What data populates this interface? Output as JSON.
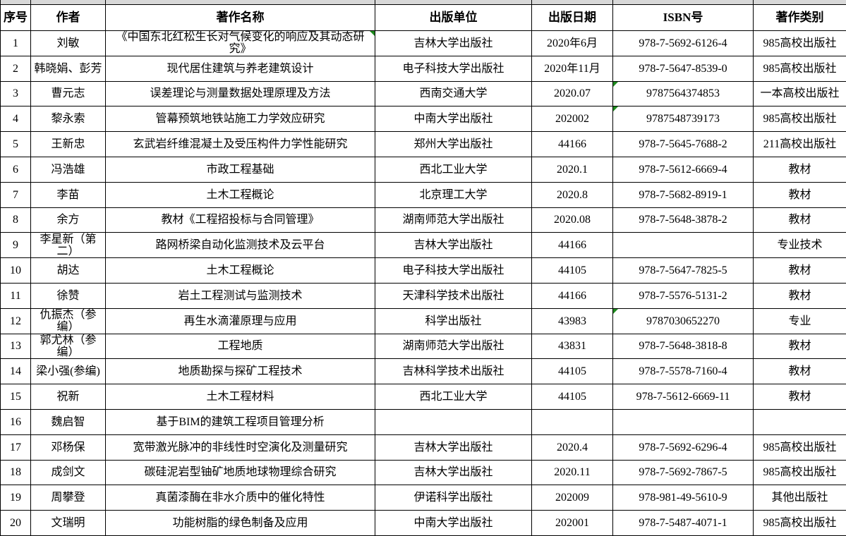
{
  "table": {
    "indicator_color": "#1e8a1e",
    "grid_color": "#000000",
    "strip_color": "#d8d8d8",
    "columns": [
      "序号",
      "作者",
      "著作名称",
      "出版单位",
      "出版日期",
      "ISBN号",
      "著作类别"
    ],
    "rows": [
      {
        "no": "1",
        "author": "刘敏",
        "title": "《中国东北红松生长对气候变化的响应及其动态研究》",
        "publisher": "吉林大学出版社",
        "date": "2020年6月",
        "isbn": "978-7-5692-6126-4",
        "category": "985高校出版社",
        "title_flag": true
      },
      {
        "no": "2",
        "author": "韩晓娟、彭芳",
        "title": "现代居住建筑与养老建筑设计",
        "publisher": "电子科技大学出版社",
        "date": "2020年11月",
        "isbn": "978-7-5647-8539-0",
        "category": "985高校出版社"
      },
      {
        "no": "3",
        "author": "曹元志",
        "title": "误差理论与测量数据处理原理及方法",
        "publisher": "西南交通大学",
        "date": "2020.07",
        "isbn": "9787564374853",
        "category": "一本高校出版社",
        "isbn_flag": true
      },
      {
        "no": "4",
        "author": "黎永索",
        "title": "管幕预筑地铁站施工力学效应研究",
        "publisher": "中南大学出版社",
        "date": "202002",
        "isbn": "9787548739173",
        "category": "985高校出版社",
        "isbn_flag": true
      },
      {
        "no": "5",
        "author": "王新忠",
        "title": "玄武岩纤维混凝土及受压构件力学性能研究",
        "publisher": "郑州大学出版社",
        "date": "44166",
        "isbn": "978-7-5645-7688-2",
        "category": "211高校出版社"
      },
      {
        "no": "6",
        "author": "冯浩雄",
        "title": "市政工程基础",
        "publisher": "西北工业大学",
        "date": "2020.1",
        "isbn": "978-7-5612-6669-4",
        "category": "教材"
      },
      {
        "no": "7",
        "author": "李苗",
        "title": "土木工程概论",
        "publisher": "北京理工大学",
        "date": "2020.8",
        "isbn": "978-7-5682-8919-1",
        "category": "教材"
      },
      {
        "no": "8",
        "author": "余方",
        "title": "教材《工程招投标与合同管理》",
        "publisher": "湖南师范大学出版社",
        "date": "2020.08",
        "isbn": "978-7-5648-3878-2",
        "category": "教材"
      },
      {
        "no": "9",
        "author": "李星新（第二）",
        "title": "路网桥梁自动化监测技术及云平台",
        "publisher": "吉林大学出版社",
        "date": "44166",
        "isbn": "",
        "category": "专业技术"
      },
      {
        "no": "10",
        "author": "胡达",
        "title": "土木工程概论",
        "publisher": "电子科技大学出版社",
        "date": "44105",
        "isbn": "978-7-5647-7825-5",
        "category": "教材"
      },
      {
        "no": "11",
        "author": "徐赞",
        "title": "岩土工程测试与监测技术",
        "publisher": "天津科学技术出版社",
        "date": "44166",
        "isbn": "978-7-5576-5131-2",
        "category": "教材"
      },
      {
        "no": "12",
        "author": "仇振杰（参编）",
        "title": "再生水滴灌原理与应用",
        "publisher": "科学出版社",
        "date": "43983",
        "isbn": "9787030652270",
        "category": "专业",
        "isbn_flag": true
      },
      {
        "no": "13",
        "author": "郭尤林（参编）",
        "title": "工程地质",
        "publisher": "湖南师范大学出版社",
        "date": "43831",
        "isbn": "978-7-5648-3818-8",
        "category": "教材"
      },
      {
        "no": "14",
        "author": "梁小强(参编)",
        "title": "地质勘探与探矿工程技术",
        "publisher": "吉林科学技术出版社",
        "date": "44105",
        "isbn": "978-7-5578-7160-4",
        "category": "教材"
      },
      {
        "no": "15",
        "author": "祝新",
        "title": "土木工程材料",
        "publisher": "西北工业大学",
        "date": "44105",
        "isbn": "978-7-5612-6669-11",
        "category": "教材"
      },
      {
        "no": "16",
        "author": "魏启智",
        "title": "基于BIM的建筑工程项目管理分析",
        "publisher": "",
        "date": "",
        "isbn": "",
        "category": ""
      },
      {
        "no": "17",
        "author": "邓杨保",
        "title": "宽带激光脉冲的非线性时空演化及测量研究",
        "publisher": "吉林大学出版社",
        "date": "2020.4",
        "isbn": "978-7-5692-6296-4",
        "category": "985高校出版社"
      },
      {
        "no": "18",
        "author": "成剑文",
        "title": "碳硅泥岩型铀矿地质地球物理综合研究",
        "publisher": "吉林大学出版社",
        "date": "2020.11",
        "isbn": "978-7-5692-7867-5",
        "category": "985高校出版社"
      },
      {
        "no": "19",
        "author": "周攀登",
        "title": "真菌漆酶在非水介质中的催化特性",
        "publisher": "伊诺科学出版社",
        "date": "202009",
        "isbn": "978-981-49-5610-9",
        "category": "其他出版社"
      },
      {
        "no": "20",
        "author": "文瑞明",
        "title": "功能树脂的绿色制备及应用",
        "publisher": "中南大学出版社",
        "date": "202001",
        "isbn": "978-7-5487-4071-1",
        "category": "985高校出版社"
      }
    ]
  }
}
